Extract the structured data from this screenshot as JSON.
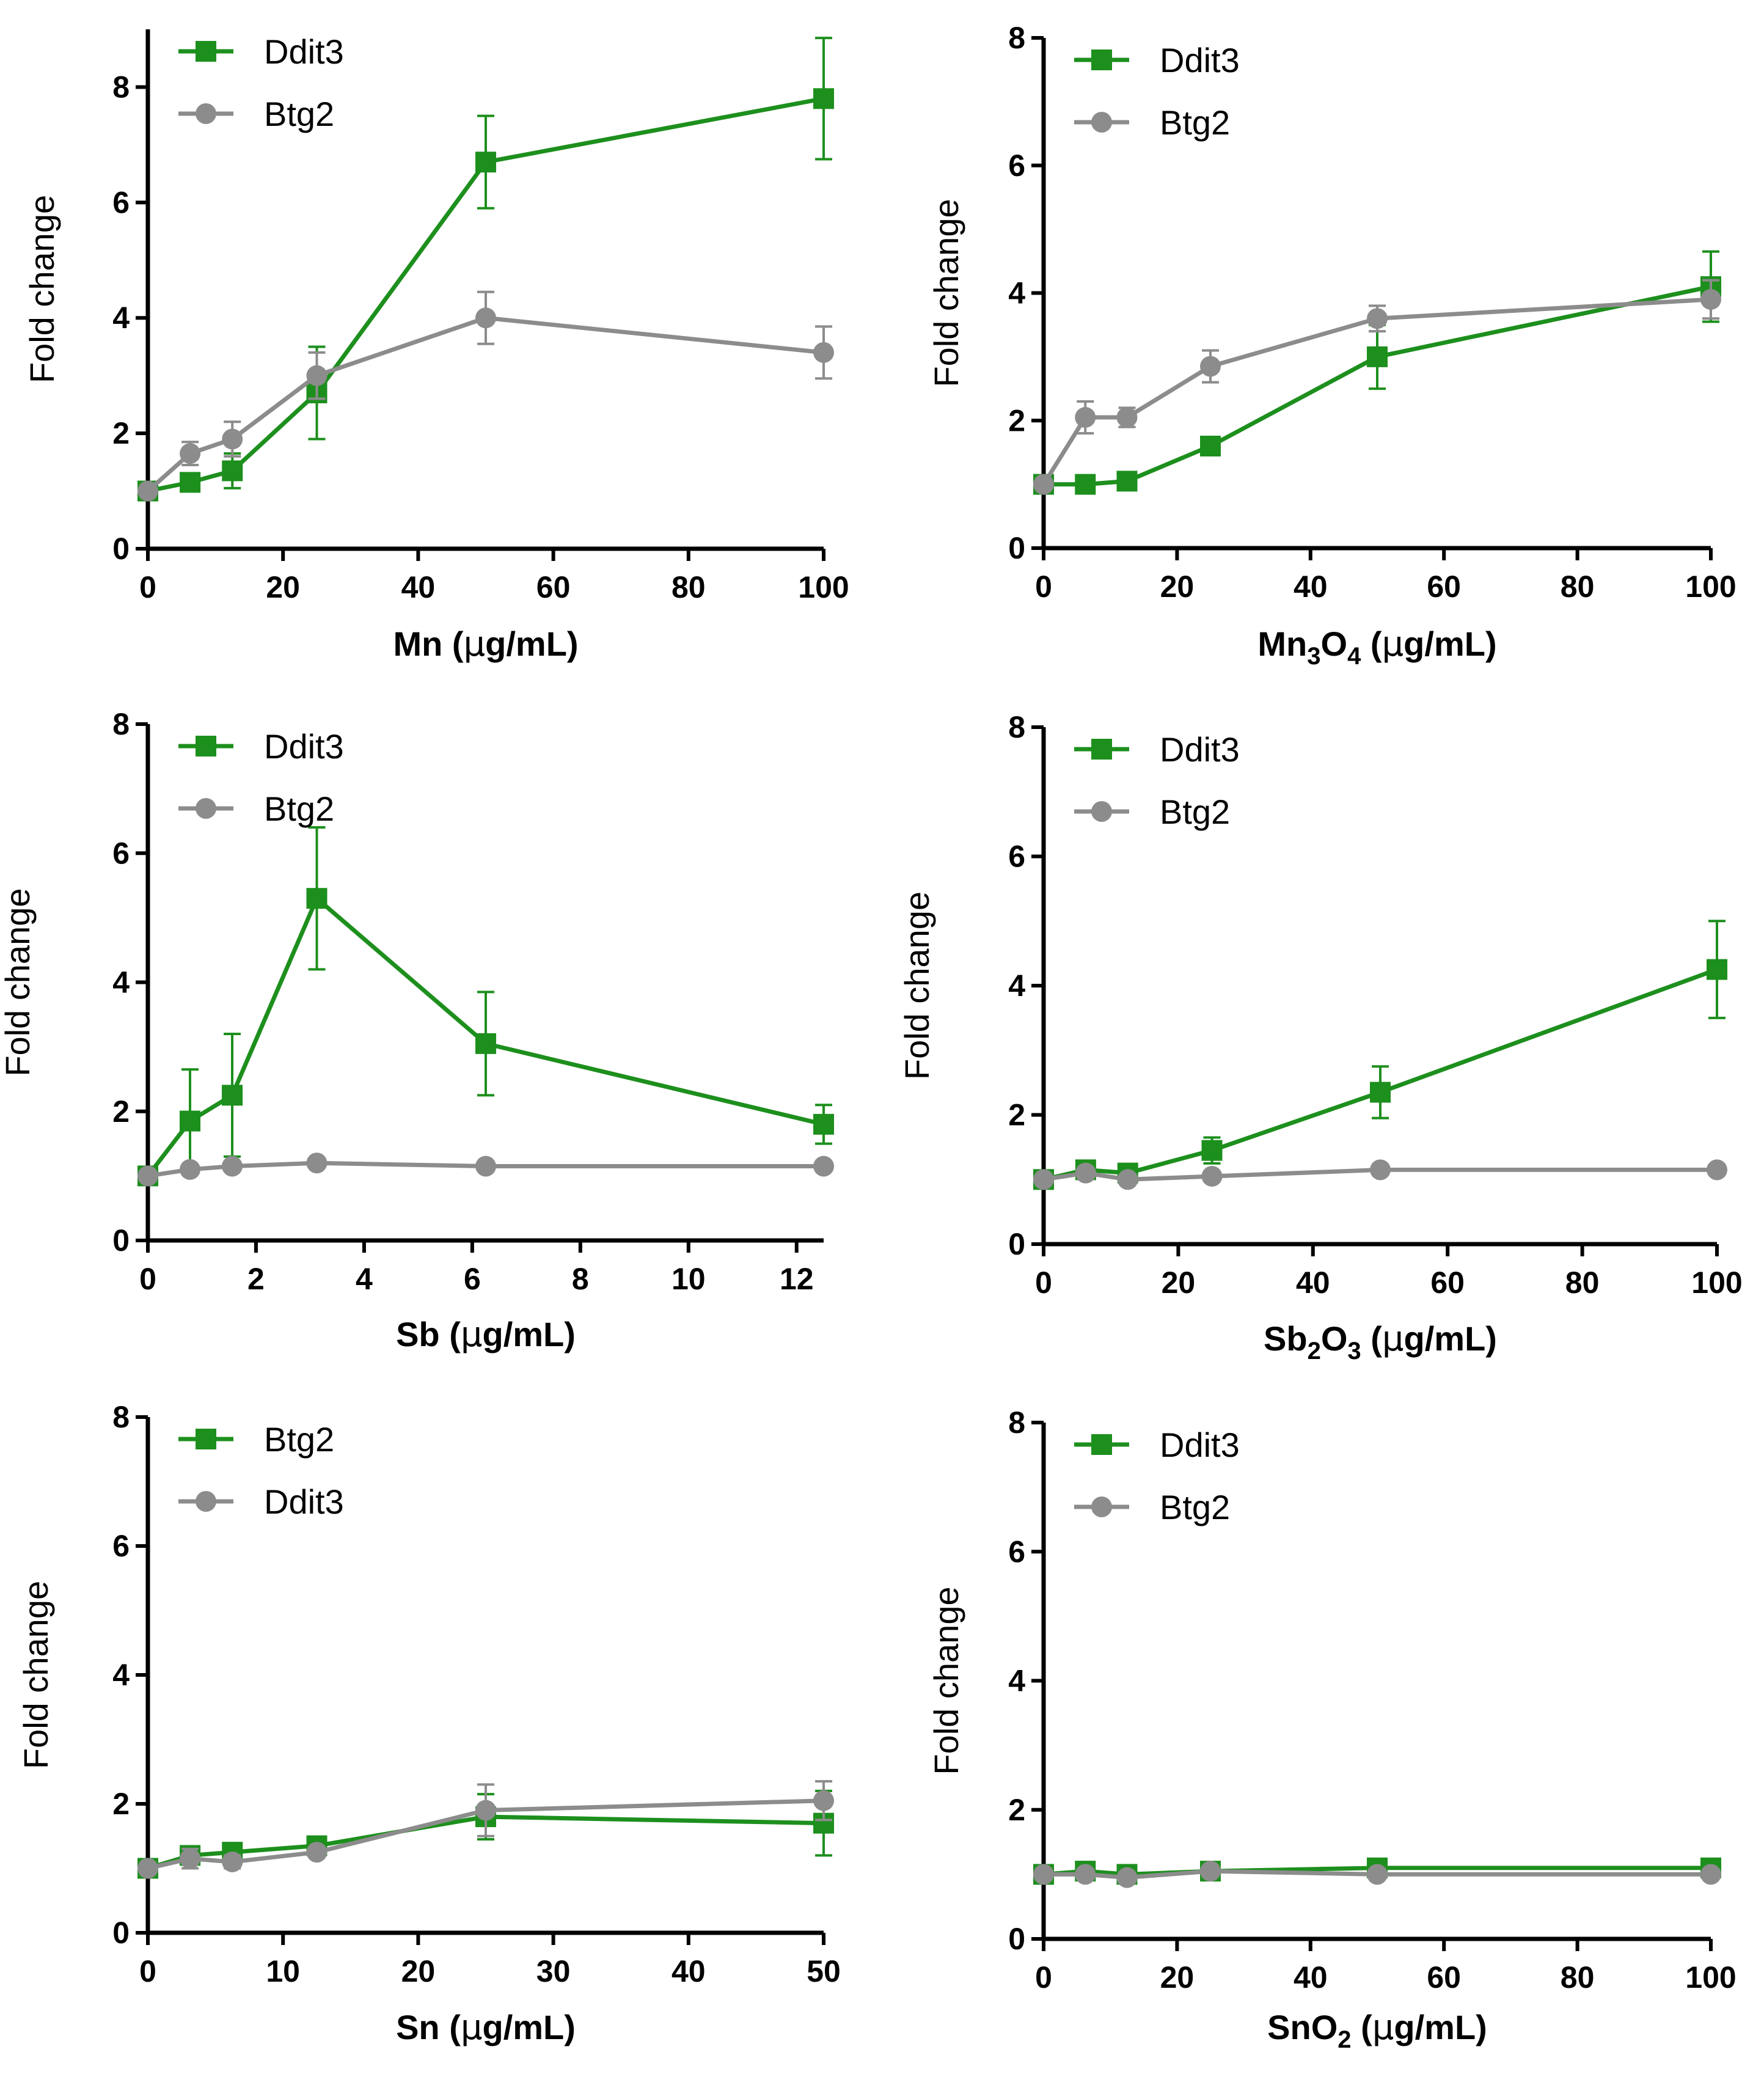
{
  "colors": {
    "green": "#1d8f1d",
    "gray": "#8c8c8c"
  },
  "ylabel": "Fold change",
  "chart_data": [
    {
      "type": "line",
      "xlabel_parts": [
        {
          "t": "Mn (",
          "f": "b"
        },
        {
          "t": "μ",
          "f": "s"
        },
        {
          "t": "g/mL)",
          "f": "b"
        }
      ],
      "xlim": [
        0,
        100
      ],
      "xticks": [
        0,
        20,
        40,
        60,
        80,
        100
      ],
      "ylim": [
        0,
        9
      ],
      "yticks": [
        0,
        2,
        4,
        6,
        8
      ],
      "series": [
        {
          "name": "Ddit3",
          "marker": "square",
          "color": "green",
          "x": [
            0,
            6.25,
            12.5,
            25,
            50,
            100
          ],
          "y": [
            1.0,
            1.15,
            1.35,
            2.7,
            6.7,
            7.8
          ],
          "err": [
            0.05,
            0.1,
            0.3,
            0.8,
            0.8,
            1.05
          ]
        },
        {
          "name": "Btg2",
          "marker": "circle",
          "color": "gray",
          "x": [
            0,
            6.25,
            12.5,
            25,
            50,
            100
          ],
          "y": [
            1.0,
            1.65,
            1.9,
            3.0,
            4.0,
            3.4
          ],
          "err": [
            0.05,
            0.2,
            0.3,
            0.4,
            0.45,
            0.45
          ]
        }
      ]
    },
    {
      "type": "line",
      "xlabel_parts": [
        {
          "t": "Mn",
          "f": "b"
        },
        {
          "t": "3",
          "f": "sub"
        },
        {
          "t": "O",
          "f": "b"
        },
        {
          "t": "4",
          "f": "sub"
        },
        {
          "t": " (",
          "f": "b"
        },
        {
          "t": "μ",
          "f": "s"
        },
        {
          "t": "g/mL)",
          "f": "b"
        }
      ],
      "xlim": [
        0,
        100
      ],
      "xticks": [
        0,
        20,
        40,
        60,
        80,
        100
      ],
      "ylim": [
        0,
        8
      ],
      "yticks": [
        0,
        2,
        4,
        6,
        8
      ],
      "series": [
        {
          "name": "Ddit3",
          "marker": "square",
          "color": "green",
          "x": [
            0,
            6.25,
            12.5,
            25,
            50,
            100
          ],
          "y": [
            1.0,
            1.0,
            1.05,
            1.6,
            3.0,
            4.1
          ],
          "err": [
            0.05,
            0.05,
            0.05,
            0.1,
            0.5,
            0.55
          ]
        },
        {
          "name": "Btg2",
          "marker": "circle",
          "color": "gray",
          "x": [
            0,
            6.25,
            12.5,
            25,
            50,
            100
          ],
          "y": [
            1.0,
            2.05,
            2.05,
            2.85,
            3.6,
            3.9
          ],
          "err": [
            0.05,
            0.25,
            0.15,
            0.25,
            0.2,
            0.3
          ]
        }
      ]
    },
    {
      "type": "line",
      "xlabel_parts": [
        {
          "t": "Sb (",
          "f": "b"
        },
        {
          "t": "μ",
          "f": "s"
        },
        {
          "t": "g/mL)",
          "f": "b"
        }
      ],
      "xlim": [
        0,
        12.5
      ],
      "xticks": [
        0,
        2,
        4,
        6,
        8,
        10,
        12
      ],
      "ylim": [
        0,
        8
      ],
      "yticks": [
        0,
        2,
        4,
        6,
        8
      ],
      "series": [
        {
          "name": "Ddit3",
          "marker": "square",
          "color": "green",
          "x": [
            0,
            0.78,
            1.56,
            3.125,
            6.25,
            12.5
          ],
          "y": [
            1.0,
            1.85,
            2.25,
            5.3,
            3.05,
            1.8
          ],
          "err": [
            0.05,
            0.8,
            0.95,
            1.1,
            0.8,
            0.3
          ]
        },
        {
          "name": "Btg2",
          "marker": "circle",
          "color": "gray",
          "x": [
            0,
            0.78,
            1.56,
            3.125,
            6.25,
            12.5
          ],
          "y": [
            1.0,
            1.1,
            1.15,
            1.2,
            1.15,
            1.15
          ],
          "err": [
            0.05,
            0.05,
            0.05,
            0.05,
            0.05,
            0.05
          ]
        }
      ]
    },
    {
      "type": "line",
      "xlabel_parts": [
        {
          "t": "Sb",
          "f": "b"
        },
        {
          "t": "2",
          "f": "sub"
        },
        {
          "t": "O",
          "f": "b"
        },
        {
          "t": "3",
          "f": "sub"
        },
        {
          "t": " (",
          "f": "b"
        },
        {
          "t": "μ",
          "f": "s"
        },
        {
          "t": "g/mL)",
          "f": "b"
        }
      ],
      "xlim": [
        0,
        100
      ],
      "xticks": [
        0,
        20,
        40,
        60,
        80,
        100
      ],
      "ylim": [
        0,
        8
      ],
      "yticks": [
        0,
        2,
        4,
        6,
        8
      ],
      "series": [
        {
          "name": "Ddit3",
          "marker": "square",
          "color": "green",
          "x": [
            0,
            6.25,
            12.5,
            25,
            50,
            100
          ],
          "y": [
            1.0,
            1.15,
            1.1,
            1.45,
            2.35,
            4.25
          ],
          "err": [
            0.05,
            0.1,
            0.1,
            0.2,
            0.4,
            0.75
          ]
        },
        {
          "name": "Btg2",
          "marker": "circle",
          "color": "gray",
          "x": [
            0,
            6.25,
            12.5,
            25,
            50,
            100
          ],
          "y": [
            1.0,
            1.1,
            1.0,
            1.05,
            1.15,
            1.15
          ],
          "err": [
            0.05,
            0.05,
            0.05,
            0.05,
            0.05,
            0.05
          ]
        }
      ]
    },
    {
      "type": "line",
      "xlabel_parts": [
        {
          "t": "Sn (",
          "f": "b"
        },
        {
          "t": "μ",
          "f": "s"
        },
        {
          "t": "g/mL)",
          "f": "b"
        }
      ],
      "xlim": [
        0,
        50
      ],
      "xticks": [
        0,
        10,
        20,
        30,
        40,
        50
      ],
      "ylim": [
        0,
        8
      ],
      "yticks": [
        0,
        2,
        4,
        6,
        8
      ],
      "series": [
        {
          "name": "Btg2",
          "marker": "square",
          "color": "green",
          "x": [
            0,
            3.125,
            6.25,
            12.5,
            25,
            50
          ],
          "y": [
            1.0,
            1.2,
            1.25,
            1.35,
            1.8,
            1.7
          ],
          "err": [
            0.05,
            0.1,
            0.1,
            0.1,
            0.35,
            0.5
          ]
        },
        {
          "name": "Ddit3",
          "marker": "circle",
          "color": "gray",
          "x": [
            0,
            3.125,
            6.25,
            12.5,
            25,
            50
          ],
          "y": [
            1.0,
            1.15,
            1.1,
            1.25,
            1.9,
            2.05
          ],
          "err": [
            0.05,
            0.15,
            0.1,
            0.05,
            0.4,
            0.3
          ]
        }
      ]
    },
    {
      "type": "line",
      "xlabel_parts": [
        {
          "t": "SnO",
          "f": "b"
        },
        {
          "t": "2",
          "f": "sub"
        },
        {
          "t": " (",
          "f": "b"
        },
        {
          "t": "μ",
          "f": "s"
        },
        {
          "t": "g/mL)",
          "f": "b"
        }
      ],
      "xlim": [
        0,
        100
      ],
      "xticks": [
        0,
        20,
        40,
        60,
        80,
        100
      ],
      "ylim": [
        0,
        8
      ],
      "yticks": [
        0,
        2,
        4,
        6,
        8
      ],
      "series": [
        {
          "name": "Ddit3",
          "marker": "square",
          "color": "green",
          "x": [
            0,
            6.25,
            12.5,
            25,
            50,
            100
          ],
          "y": [
            1.0,
            1.05,
            1.0,
            1.05,
            1.1,
            1.1
          ],
          "err": [
            0.05,
            0.05,
            0.05,
            0.05,
            0.05,
            0.05
          ]
        },
        {
          "name": "Btg2",
          "marker": "circle",
          "color": "gray",
          "x": [
            0,
            6.25,
            12.5,
            25,
            50,
            100
          ],
          "y": [
            1.0,
            1.0,
            0.95,
            1.05,
            1.0,
            1.0
          ],
          "err": [
            0.05,
            0.05,
            0.05,
            0.05,
            0.05,
            0.05
          ]
        }
      ]
    }
  ]
}
